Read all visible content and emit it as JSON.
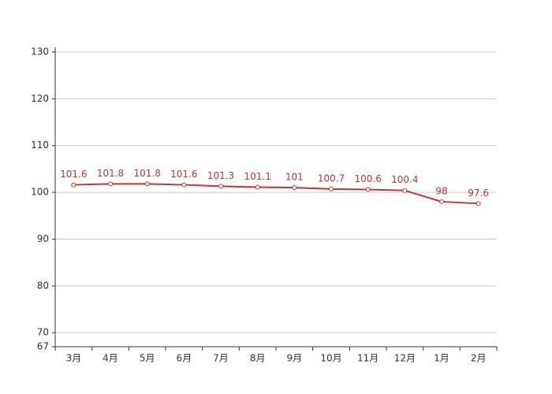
{
  "chart_data": {
    "type": "line",
    "categories": [
      "3月",
      "4月",
      "5月",
      "6月",
      "7月",
      "8月",
      "9月",
      "10月",
      "11月",
      "12月",
      "1月",
      "2月"
    ],
    "series": [
      {
        "color": "#c23531",
        "values": [
          101.6,
          101.8,
          101.8,
          101.6,
          101.3,
          101.1,
          101,
          100.7,
          100.6,
          100.4,
          98,
          97.6
        ]
      }
    ],
    "ylim": [
      67,
      131
    ],
    "yticks": [
      67,
      70,
      80,
      90,
      100,
      110,
      120,
      130
    ],
    "grid": true
  }
}
